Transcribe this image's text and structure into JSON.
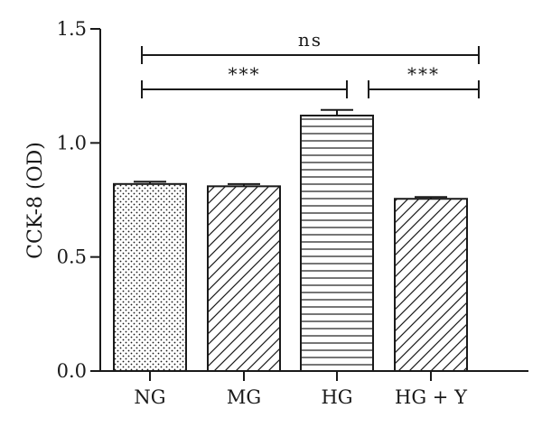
{
  "chart_data": {
    "type": "bar",
    "title": "",
    "xlabel": "",
    "ylabel": "CCK-8 (OD)",
    "ylim": [
      0,
      1.5
    ],
    "yticks": [
      "0.0",
      "0.5",
      "1.0",
      "1.5"
    ],
    "categories": [
      "NG",
      "MG",
      "HG",
      "HG + Y"
    ],
    "values": [
      0.82,
      0.81,
      1.12,
      0.755
    ],
    "errors": [
      0.01,
      0.01,
      0.025,
      0.008
    ],
    "patterns": [
      "dots",
      "diagonal-forward",
      "horizontal",
      "diagonal-forward"
    ],
    "bar_color": "#ffffff",
    "line_color": "#1a1a1a",
    "significance": [
      {
        "from": "NG",
        "to": "HG + Y",
        "label": "ns"
      },
      {
        "from": "NG",
        "to": "HG",
        "label": "***"
      },
      {
        "from": "HG",
        "to": "HG + Y",
        "label": "***"
      }
    ]
  }
}
